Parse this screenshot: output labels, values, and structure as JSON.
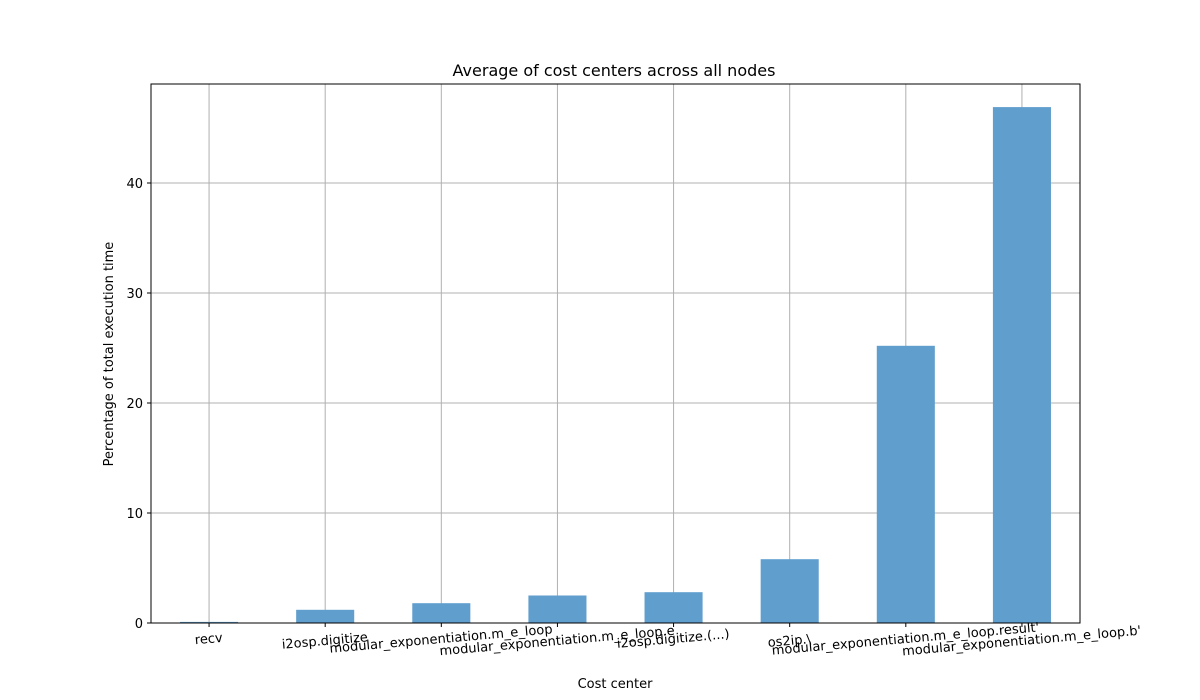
{
  "chart_data": {
    "type": "bar",
    "title": "Average of cost centers across all nodes",
    "xlabel": "Cost center",
    "ylabel": "Percentage of total execution time",
    "categories": [
      "recv",
      "i2osp.digitize",
      "modular_exponentiation.m_e_loop",
      "modular_exponentiation.m_e_loop.e",
      "i2osp.digitize.(...)",
      "os2ip.\\",
      "modular_exponentiation.m_e_loop.result'",
      "modular_exponentiation.m_e_loop.b'"
    ],
    "values": [
      0.1,
      1.2,
      1.8,
      2.5,
      2.8,
      5.8,
      25.2,
      46.9
    ],
    "ylim": [
      0,
      49
    ],
    "yticks": [
      0,
      10,
      20,
      30,
      40
    ],
    "grid": true,
    "bar_color": "#5f9ecd"
  }
}
